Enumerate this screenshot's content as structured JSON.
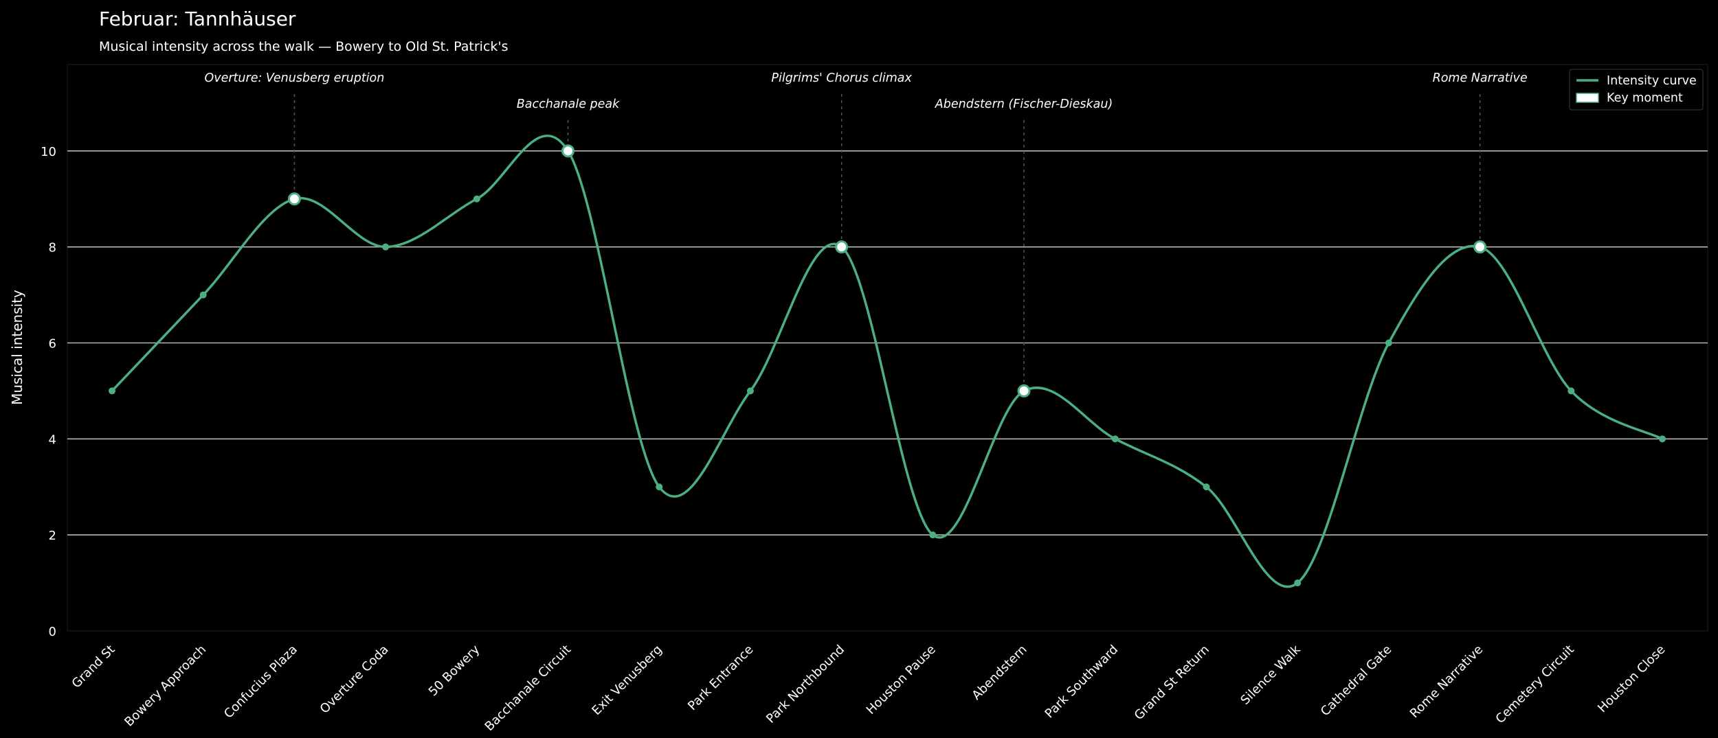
{
  "chart_data": {
    "type": "line",
    "title": "Februar: Tannhäuser",
    "subtitle": "Musical intensity across the walk — Bowery to Old St. Patrick's",
    "ylabel": "Musical intensity",
    "xlabel": "",
    "ylim": [
      0,
      11.8
    ],
    "yticks": [
      0,
      2,
      4,
      6,
      8,
      10
    ],
    "grid": "horizontal",
    "legend_position": "top-right",
    "categories": [
      "Grand St",
      "Bowery Approach",
      "Confucius Plaza",
      "Overture Coda",
      "50 Bowery",
      "Bacchanale Circuit",
      "Exit Venusberg",
      "Park Entrance",
      "Park Northbound",
      "Houston Pause",
      "Abendstern",
      "Park Southward",
      "Grand St Return",
      "Silence Walk",
      "Cathedral Gate",
      "Rome Narrative",
      "Cemetery Circuit",
      "Houston Close"
    ],
    "series": [
      {
        "name": "Intensity curve",
        "values": [
          5,
          7,
          9,
          8,
          9,
          10,
          3,
          5,
          8,
          2,
          5,
          4,
          3,
          1,
          6,
          8,
          5,
          4
        ]
      }
    ],
    "key_moments": {
      "name": "Key moment",
      "points": [
        {
          "category": "Confucius Plaza",
          "value": 9,
          "label": "Overture: Venusberg eruption",
          "row": 0
        },
        {
          "category": "Bacchanale Circuit",
          "value": 10,
          "label": "Bacchanale peak",
          "row": 1
        },
        {
          "category": "Park Northbound",
          "value": 8,
          "label": "Pilgrims' Chorus climax",
          "row": 0
        },
        {
          "category": "Abendstern",
          "value": 5,
          "label": "Abendstern (Fischer-Dieskau)",
          "row": 1
        },
        {
          "category": "Rome Narrative",
          "value": 8,
          "label": "Rome Narrative",
          "row": 0
        }
      ]
    },
    "colors": {
      "background": "#000000",
      "curve": "#4caf82",
      "grid": "#b8b8b8",
      "text": "#ffffff",
      "key_fill": "#ffffff"
    }
  }
}
